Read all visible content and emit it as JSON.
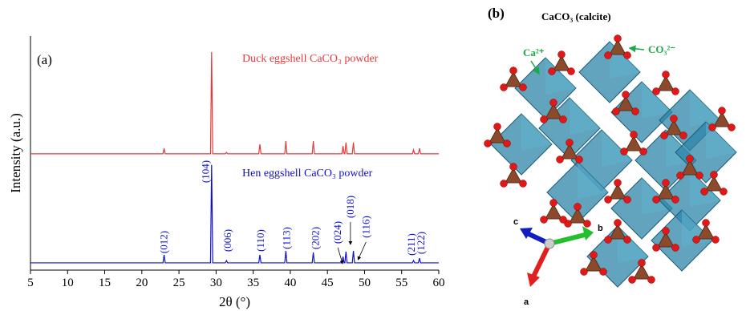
{
  "chart_data": {
    "type": "line",
    "panel_label": "(a)",
    "x_label": "2θ (°)",
    "y_label": "Intensity (a.u.)",
    "x": [
      5,
      22.85,
      23,
      23.15,
      29.25,
      29.4,
      29.55,
      31.25,
      31.4,
      31.55,
      35.75,
      35.9,
      36.05,
      39.25,
      39.4,
      39.55,
      42.95,
      43.1,
      43.25,
      46.95,
      47.1,
      47.25,
      47.35,
      47.5,
      47.65,
      48.35,
      48.5,
      48.65,
      56.45,
      56.6,
      56.75,
      57.25,
      57.4,
      57.55,
      60
    ],
    "series": [
      {
        "name": "Duck eggshell CaCO₃ powder",
        "color": "#e8383d",
        "values": [
          49.7,
          49.7,
          52,
          49.7,
          49.7,
          93.2,
          49.7,
          49.7,
          50.3,
          49.7,
          49.7,
          53.8,
          49.7,
          49.7,
          55.1,
          49.7,
          49.7,
          55.1,
          49.7,
          49.7,
          53,
          49.7,
          49.7,
          54.5,
          49.7,
          49.7,
          54.5,
          49.7,
          49.7,
          51.4,
          49.7,
          49.7,
          52,
          49.7,
          49.7
        ]
      },
      {
        "name": "Hen eggshell CaCO₃ powder",
        "color": "#1010d0",
        "values": [
          3.1,
          3.1,
          6.5,
          3.1,
          3.1,
          45,
          3.1,
          3.1,
          4.1,
          3.1,
          3.1,
          6.5,
          3.1,
          3.1,
          8.2,
          3.1,
          3.1,
          7.5,
          3.1,
          3.1,
          5.8,
          3.1,
          3.1,
          7.9,
          3.1,
          3.1,
          8.2,
          3.1,
          3.1,
          4.1,
          3.1,
          3.1,
          5.1,
          3.1,
          3.1
        ]
      }
    ],
    "annotations": [
      {
        "text": "(012)",
        "x": 23
      },
      {
        "text": "(104)",
        "x": 28.6
      },
      {
        "text": "(006)",
        "x": 31.6
      },
      {
        "text": "(110)",
        "x": 36
      },
      {
        "text": "(113)",
        "x": 39.5
      },
      {
        "text": "(202)",
        "x": 43.4
      },
      {
        "text": "(024)",
        "x": 46.4
      },
      {
        "text": "(018)",
        "x": 48.1
      },
      {
        "text": "(116)",
        "x": 50.2
      },
      {
        "text": "(211)",
        "x": 56.3
      },
      {
        "text": "(122)",
        "x": 57.6
      }
    ],
    "xlim": [
      5,
      60
    ],
    "ylim": [
      0,
      100
    ],
    "xticks": [
      5,
      10,
      15,
      20,
      25,
      30,
      35,
      40,
      45,
      50,
      55,
      60
    ]
  },
  "structure": {
    "panel_label": "(b)",
    "title": "CaCO₃ (calcite)",
    "ion_ca": "Ca²⁺",
    "ion_co3": "CO₃²⁻",
    "axis_c": "c",
    "axis_b": "b",
    "axis_a": "a"
  }
}
